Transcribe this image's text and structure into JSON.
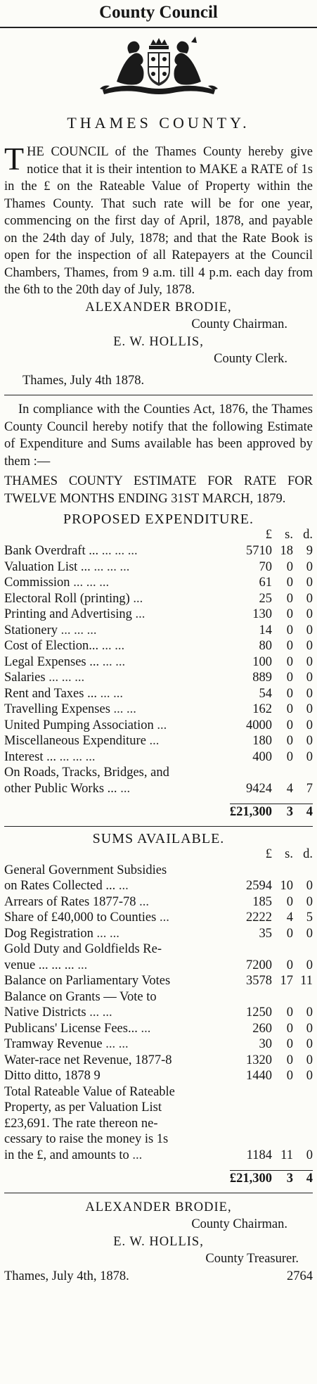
{
  "masthead": {
    "title": "County Council"
  },
  "notice": {
    "county": "THAMES COUNTY.",
    "dropcap": "T",
    "body": "HE COUNCIL of the Thames County hereby give notice that it is their intention to MAKE a RATE of 1s in the £ on the Rateable Value of Property within the Thames County. That such rate will be for one year, commencing on the first day of April, 1878, and payable on the 24th day of July, 1878; and that the Rate Book is open for the inspection of all Ratepayers at the Council Chambers, Thames, from 9 a.m. till 4 p.m. each day from the 6th to the 20th day of July, 1878.",
    "chairman": "ALEXANDER BRODIE,",
    "chairman_role": "County Chairman.",
    "clerk": "E. W. HOLLIS,",
    "clerk_role": "County Clerk.",
    "date": "Thames, July 4th 1878."
  },
  "estimate": {
    "intro": "In compliance with the Counties Act, 1876, the Thames County Council hereby notify that the following Estimate of Expenditure and Sums available has been approved by them :—",
    "heading": "THAMES COUNTY ESTIMATE FOR RATE FOR TWELVE MONTHS ENDING 31ST MARCH, 1879.",
    "expenditure_title": "PROPOSED EXPENDITURE.",
    "col_pound": "£",
    "col_s": "s.",
    "col_d": "d.",
    "expenditure": [
      {
        "label": "Bank Overdraft ...",
        "dots": "...   ...   ...",
        "pounds": "5710",
        "s": "18",
        "d": "9"
      },
      {
        "label": "Valuation List ...",
        "dots": "...   ...   ...",
        "pounds": "70",
        "s": "0",
        "d": "0"
      },
      {
        "label": "Commission",
        "dots": "...   ...   ...",
        "pounds": "61",
        "s": "0",
        "d": "0"
      },
      {
        "label": "Electoral Roll (printing)",
        "dots": "...",
        "pounds": "25",
        "s": "0",
        "d": "0"
      },
      {
        "label": "Printing and Advertising",
        "dots": "...",
        "pounds": "130",
        "s": "0",
        "d": "0"
      },
      {
        "label": "Stationery",
        "dots": "...   ...   ...",
        "pounds": "14",
        "s": "0",
        "d": "0"
      },
      {
        "label": "Cost of Election...",
        "dots": "...   ...",
        "pounds": "80",
        "s": "0",
        "d": "0"
      },
      {
        "label": "Legal Expenses ...",
        "dots": "...   ...",
        "pounds": "100",
        "s": "0",
        "d": "0"
      },
      {
        "label": "Salaries",
        "dots": "...   ...   ...",
        "pounds": "889",
        "s": "0",
        "d": "0"
      },
      {
        "label": "Rent and Taxes ...",
        "dots": "...   ...",
        "pounds": "54",
        "s": "0",
        "d": "0"
      },
      {
        "label": "Travelling Expenses",
        "dots": "...   ...",
        "pounds": "162",
        "s": "0",
        "d": "0"
      },
      {
        "label": "United Pumping Association",
        "dots": "...",
        "pounds": "4000",
        "s": "0",
        "d": "0"
      },
      {
        "label": "Miscellaneous Expenditure",
        "dots": "...",
        "pounds": "180",
        "s": "0",
        "d": "0"
      },
      {
        "label": "Interest ...",
        "dots": "...   ...   ...",
        "pounds": "400",
        "s": "0",
        "d": "0"
      }
    ],
    "roads_line1": "On Roads, Tracks, Bridges, and",
    "roads_line2": "other Public Works ...",
    "roads_dots": "...",
    "roads_pounds": "9424",
    "roads_s": "4",
    "roads_d": "7",
    "exp_total": {
      "pounds": "£21,300",
      "s": "3",
      "d": "4"
    },
    "sums_title": "SUMS AVAILABLE.",
    "sums": [
      {
        "label": "General Government Subsidies",
        "sub": "on Rates Collected ...",
        "dots": "...",
        "pounds": "2594",
        "s": "10",
        "d": "0"
      },
      {
        "label": "Arrears of Rates 1877-78",
        "dots": "...",
        "pounds": "185",
        "s": "0",
        "d": "0"
      },
      {
        "label": "Share of £40,000 to Counties",
        "dots": "...",
        "pounds": "2222",
        "s": "4",
        "d": "5"
      },
      {
        "label": "Dog Registration",
        "dots": "...   ...",
        "pounds": "35",
        "s": "0",
        "d": "0"
      },
      {
        "label": "Gold Duty and Goldfields Re-",
        "sub": "venue ...   ...   ...",
        "dots": "...",
        "pounds": "7200",
        "s": "0",
        "d": "0"
      },
      {
        "label": "Balance on Parliamentary Votes",
        "dots": "",
        "pounds": "3578",
        "s": "17",
        "d": "11"
      },
      {
        "label": "Balance on Grants — Vote to",
        "sub": "Native Districts",
        "dots": "...   ...",
        "pounds": "1250",
        "s": "0",
        "d": "0"
      },
      {
        "label": "Publicans' License Fees...",
        "dots": "...",
        "pounds": "260",
        "s": "0",
        "d": "0"
      },
      {
        "label": "Tramway Revenue",
        "dots": "...   ...",
        "pounds": "30",
        "s": "0",
        "d": "0"
      },
      {
        "label": "Water-race net Revenue, 1877-8",
        "dots": "",
        "pounds": "1320",
        "s": "0",
        "d": "0"
      },
      {
        "label": "Ditto     ditto,  1878 9",
        "dots": "",
        "pounds": "1440",
        "s": "0",
        "d": "0"
      }
    ],
    "rateable_lines": [
      "Total Rateable Value of Rateable",
      "Property, as per Valuation List",
      "£23,691. The rate thereon ne-",
      "cessary to raise the money is 1s",
      "in the £, and amounts to"
    ],
    "rateable_dots": "...",
    "rateable_pounds": "1184",
    "rateable_s": "11",
    "rateable_d": "0",
    "sums_total": {
      "pounds": "£21,300",
      "s": "3",
      "d": "4"
    },
    "chairman": "ALEXANDER BRODIE,",
    "chairman_role": "County Chairman.",
    "treasurer": "E. W. HOLLIS,",
    "treasurer_role": "County Treasurer.",
    "date": "Thames, July 4th, 1878.",
    "ad_number": "2764"
  }
}
